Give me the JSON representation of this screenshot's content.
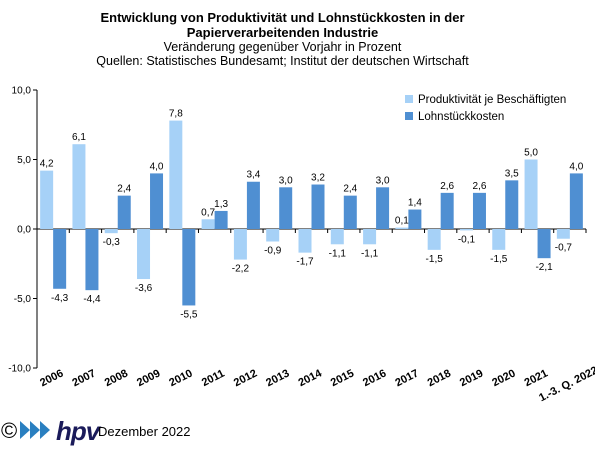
{
  "header": {
    "title_line1": "Entwicklung von Produktivität und Lohnstückkosten  in der",
    "title_line2": "Papierverarbeitenden Industrie",
    "subtitle": "Veränderung  gegenüber  Vorjahr  in Prozent",
    "sources": "Quellen: Statistisches Bundesamt; Institut der deutschen Wirtschaft"
  },
  "footer": {
    "copyright": "©",
    "logo_text": "hpv",
    "date": "Dezember 2022"
  },
  "colors": {
    "produktivitaet": "#a6d1f7",
    "lohnstueckkosten": "#4f8fd2"
  },
  "chart_data": {
    "type": "bar",
    "title": "Entwicklung von Produktivität und Lohnstückkosten  in der Papierverarbeitenden Industrie",
    "subtitle": "Veränderung  gegenüber  Vorjahr  in Prozent",
    "categories": [
      "2006",
      "2007",
      "2008",
      "2009",
      "2010",
      "2011",
      "2012",
      "2013",
      "2014",
      "2015",
      "2016",
      "2017",
      "2018",
      "2019",
      "2020",
      "2021",
      "1.-3. Q. 2022"
    ],
    "series": [
      {
        "name": "Produktivität je Beschäftigten",
        "values": [
          4.2,
          6.1,
          -0.3,
          -3.6,
          7.8,
          0.7,
          -2.2,
          -0.9,
          -1.7,
          -1.1,
          -1.1,
          0.1,
          -1.5,
          -0.1,
          -1.5,
          5.0,
          -0.7
        ],
        "labels": [
          "4,2",
          "6,1",
          "-0,3",
          "-3,6",
          "7,8",
          "0,7",
          "-2,2",
          "-0,9",
          "-1,7",
          "-1,1",
          "-1,1",
          "0,1",
          "-1,5",
          "-0,1",
          "-1,5",
          "5,0",
          "-0,7"
        ]
      },
      {
        "name": "Lohnstückkosten",
        "values": [
          -4.3,
          -4.4,
          2.4,
          4.0,
          -5.5,
          1.3,
          3.4,
          3.0,
          3.2,
          2.4,
          3.0,
          1.4,
          2.6,
          2.6,
          3.5,
          -2.1,
          4.0
        ],
        "labels": [
          "-4,3",
          "-4,4",
          "2,4",
          "4,0",
          "-5,5",
          "1,3",
          "3,4",
          "3,0",
          "3,2",
          "2,4",
          "3,0",
          "1,4",
          "2,6",
          "2,6",
          "3,5",
          "-2,1",
          "4,0"
        ]
      }
    ],
    "ylim": [
      -10,
      10
    ],
    "yticks": [
      -10,
      -5,
      0,
      5,
      10
    ],
    "ytick_labels": [
      "-10,0",
      "-5,0",
      "0,0",
      "5,0",
      "10,0"
    ],
    "legend_position": "top-right",
    "grid": false
  }
}
